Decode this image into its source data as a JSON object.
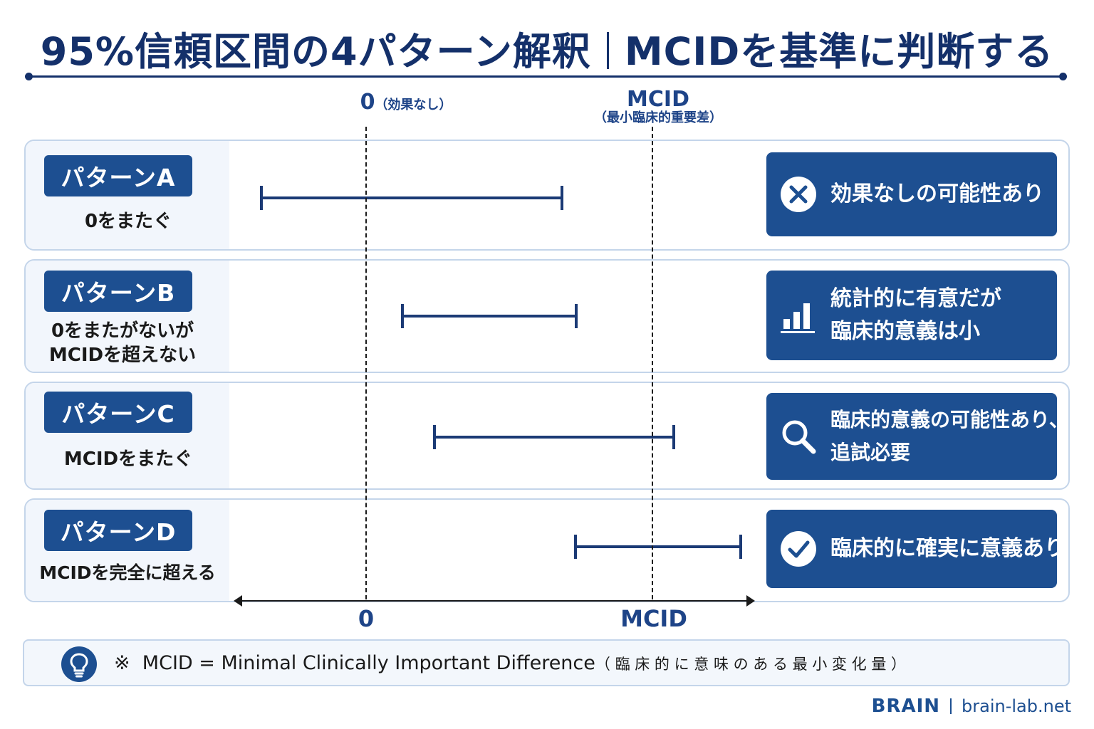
{
  "title": {
    "main": "95%信頼区間の4パターン解釈",
    "sub": "MCIDを基準に判断する"
  },
  "axis": {
    "zero_label": "0",
    "zero_note": "（効果なし）",
    "mcid_label": "MCID",
    "mcid_note": "（最小臨床的重要差）",
    "bottom_zero": "0",
    "bottom_mcid": "MCID"
  },
  "patterns": [
    {
      "badge": "パターンA",
      "desc": [
        "0をまたぐ"
      ],
      "result": [
        "効果なしの可能性あり"
      ],
      "icon": "x-circle-icon"
    },
    {
      "badge": "パターンB",
      "desc": [
        "0をまたがないが",
        "MCIDを超えない"
      ],
      "result": [
        "統計的に有意だが",
        "臨床的意義は小"
      ],
      "icon": "bar-chart-icon"
    },
    {
      "badge": "パターンC",
      "desc": [
        "MCIDをまたぐ"
      ],
      "result": [
        "臨床的意義の可能性あり、",
        "追試必要"
      ],
      "icon": "magnifier-icon"
    },
    {
      "badge": "パターンD",
      "desc": [
        "MCIDを完全に超える"
      ],
      "result": [
        "臨床的に確実に意義あり"
      ],
      "icon": "check-circle-icon"
    }
  ],
  "footnote": {
    "mark": "※",
    "text": "MCID = Minimal Clinically Important Difference",
    "jp": "（ 臨 床 的 に 意 味 の あ る 最 小 変 化 量 ）",
    "icon": "lightbulb-icon"
  },
  "brand": {
    "name": "BRAIN",
    "url": "brain-lab.net"
  },
  "colors": {
    "navy": "#14306a",
    "badge": "#1d4f91",
    "ci": "#1b3a75",
    "panel_border": "#c4d5ea"
  }
}
